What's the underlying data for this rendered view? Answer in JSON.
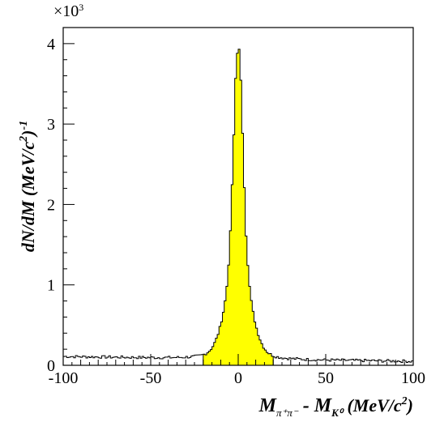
{
  "chart_data": {
    "type": "histogram",
    "title": "",
    "xlabel_parts": {
      "m1": "M",
      "sub1": "π⁺π⁻",
      "minus": " - ",
      "m2": "M",
      "sub2": "K⁰",
      "unit": " (MeV/c",
      "unit_sup": "2",
      "unit_close": ")"
    },
    "ylabel_parts": {
      "main": "dN/dM (MeV/c",
      "sup": "2",
      "close": ")",
      "exp": "-1"
    },
    "y_multiplier": "×10",
    "y_multiplier_exp": "3",
    "xlim": [
      -100,
      100
    ],
    "ylim": [
      0,
      4.2
    ],
    "xticks": [
      -100,
      -50,
      0,
      50,
      100
    ],
    "yticks": [
      0,
      1,
      2,
      3,
      4
    ],
    "fill_range": [
      -20,
      20
    ],
    "fill_color": "#ffff00",
    "line_color": "#000000",
    "bin_width": 1,
    "peak_center": 0,
    "peak_height": 3.93,
    "background_level": 0.11,
    "tail_at_100": 0.05
  }
}
